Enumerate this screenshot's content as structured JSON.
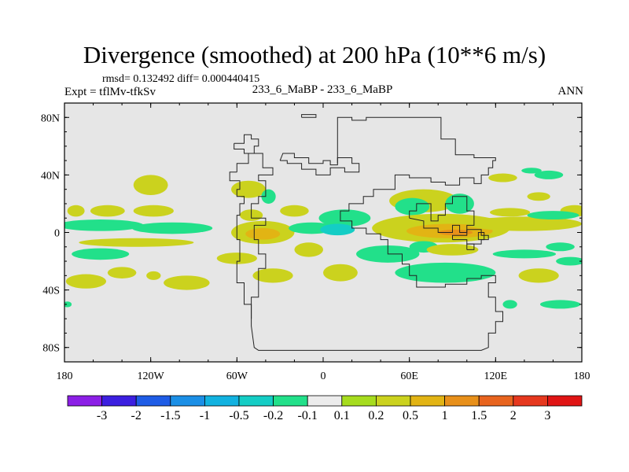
{
  "header": {
    "title": "Divergence (smoothed) at 200 hPa (10**6 m/s)",
    "stats": "rmsd= 0.132492 diff= 0.000440415",
    "experiment": "Expt = tflMv-tfkSv",
    "cases": "233_6_MaBP - 233_6_MaBP",
    "season": "ANN"
  },
  "chart_data": {
    "type": "heatmap",
    "title": "Divergence (smoothed) at 200 hPa (10**6 m/s)",
    "xlabel": "",
    "ylabel": "",
    "xlim": [
      -180,
      180
    ],
    "ylim": [
      -90,
      90
    ],
    "x_ticks": [
      {
        "value": -180,
        "label": "180"
      },
      {
        "value": -120,
        "label": "120W"
      },
      {
        "value": -60,
        "label": "60W"
      },
      {
        "value": 0,
        "label": "0"
      },
      {
        "value": 60,
        "label": "60E"
      },
      {
        "value": 120,
        "label": "120E"
      },
      {
        "value": 180,
        "label": "180"
      }
    ],
    "y_ticks": [
      {
        "value": 80,
        "label": "80N"
      },
      {
        "value": 40,
        "label": "40N"
      },
      {
        "value": 0,
        "label": "0"
      },
      {
        "value": -40,
        "label": "40S"
      },
      {
        "value": -80,
        "label": "80S"
      }
    ],
    "colorbar": {
      "labels": [
        "-3",
        "-2",
        "-1.5",
        "-1",
        "-0.5",
        "-0.2",
        "-0.1",
        "0.1",
        "0.2",
        "0.5",
        "1",
        "1.5",
        "2",
        "3"
      ],
      "colors": [
        "#8c1fe6",
        "#3c1fe0",
        "#1e5ce6",
        "#1b8fe6",
        "#12b2e0",
        "#14cdc5",
        "#22e08a",
        "#ececec",
        "#a6dc1e",
        "#cbd21e",
        "#e2b414",
        "#e8901a",
        "#e8641e",
        "#e6381e",
        "#e01414"
      ]
    },
    "background_value_color": "#e6e6e6",
    "regions": [
      {
        "lon": 175,
        "lat": 15,
        "rx": 10,
        "ry": 4,
        "value": 0.2
      },
      {
        "lon": -172,
        "lat": 15,
        "rx": 6,
        "ry": 4,
        "value": 0.2
      },
      {
        "lon": -150,
        "lat": 15,
        "rx": 12,
        "ry": 4,
        "value": 0.2
      },
      {
        "lon": -118,
        "lat": 15,
        "rx": 14,
        "ry": 4,
        "value": 0.2
      },
      {
        "lon": -120,
        "lat": 33,
        "rx": 12,
        "ry": 7,
        "value": 0.2
      },
      {
        "lon": -155,
        "lat": 5,
        "rx": 30,
        "ry": 4,
        "value": -0.2
      },
      {
        "lon": -105,
        "lat": 3,
        "rx": 28,
        "ry": 4,
        "value": -0.2
      },
      {
        "lon": -130,
        "lat": -7,
        "rx": 40,
        "ry": 3,
        "value": 0.2
      },
      {
        "lon": -155,
        "lat": -15,
        "rx": 20,
        "ry": 4,
        "value": -0.2
      },
      {
        "lon": -140,
        "lat": -28,
        "rx": 10,
        "ry": 4,
        "value": 0.2
      },
      {
        "lon": -165,
        "lat": -34,
        "rx": 14,
        "ry": 5,
        "value": 0.2
      },
      {
        "lon": -95,
        "lat": -35,
        "rx": 16,
        "ry": 5,
        "value": 0.2
      },
      {
        "lon": -118,
        "lat": -30,
        "rx": 5,
        "ry": 3,
        "value": 0.2
      },
      {
        "lon": -52,
        "lat": 30,
        "rx": 12,
        "ry": 6,
        "value": 0.2
      },
      {
        "lon": -50,
        "lat": 12,
        "rx": 8,
        "ry": 4,
        "value": 0.2
      },
      {
        "lon": -38,
        "lat": 25,
        "rx": 5,
        "ry": 5,
        "value": -0.2
      },
      {
        "lon": -20,
        "lat": 15,
        "rx": 10,
        "ry": 4,
        "value": 0.2
      },
      {
        "lon": -42,
        "lat": 0,
        "rx": 22,
        "ry": 8,
        "value": 0.2
      },
      {
        "lon": -42,
        "lat": -1,
        "rx": 12,
        "ry": 4,
        "value": 0.5
      },
      {
        "lon": -8,
        "lat": 3,
        "rx": 16,
        "ry": 4,
        "value": -0.2
      },
      {
        "lon": -60,
        "lat": -18,
        "rx": 14,
        "ry": 4,
        "value": 0.2
      },
      {
        "lon": -10,
        "lat": -12,
        "rx": 10,
        "ry": 5,
        "value": 0.2
      },
      {
        "lon": -35,
        "lat": -30,
        "rx": 14,
        "ry": 5,
        "value": 0.2
      },
      {
        "lon": 15,
        "lat": 10,
        "rx": 18,
        "ry": 6,
        "value": -0.2
      },
      {
        "lon": 10,
        "lat": 2,
        "rx": 12,
        "ry": 4,
        "value": -0.5
      },
      {
        "lon": 70,
        "lat": 22,
        "rx": 24,
        "ry": 8,
        "value": 0.2
      },
      {
        "lon": 62,
        "lat": 18,
        "rx": 12,
        "ry": 6,
        "value": -0.2
      },
      {
        "lon": 95,
        "lat": 20,
        "rx": 10,
        "ry": 7,
        "value": -0.2
      },
      {
        "lon": 82,
        "lat": 3,
        "rx": 48,
        "ry": 10,
        "value": 0.2
      },
      {
        "lon": 88,
        "lat": 1,
        "rx": 30,
        "ry": 5,
        "value": 0.5
      },
      {
        "lon": 92,
        "lat": 0,
        "rx": 12,
        "ry": 2,
        "value": 1
      },
      {
        "lon": 140,
        "lat": 6,
        "rx": 40,
        "ry": 5,
        "value": 0.2
      },
      {
        "lon": 160,
        "lat": 12,
        "rx": 18,
        "ry": 3,
        "value": -0.2
      },
      {
        "lon": 130,
        "lat": 14,
        "rx": 14,
        "ry": 3,
        "value": 0.2
      },
      {
        "lon": 125,
        "lat": 38,
        "rx": 10,
        "ry": 3,
        "value": 0.2
      },
      {
        "lon": 157,
        "lat": 40,
        "rx": 10,
        "ry": 3,
        "value": -0.2
      },
      {
        "lon": 145,
        "lat": 43,
        "rx": 7,
        "ry": 2,
        "value": -0.2
      },
      {
        "lon": 150,
        "lat": 25,
        "rx": 8,
        "ry": 3,
        "value": 0.2
      },
      {
        "lon": 45,
        "lat": -15,
        "rx": 22,
        "ry": 6,
        "value": -0.2
      },
      {
        "lon": 70,
        "lat": -10,
        "rx": 10,
        "ry": 4,
        "value": -0.2
      },
      {
        "lon": 90,
        "lat": -12,
        "rx": 18,
        "ry": 4,
        "value": 0.2
      },
      {
        "lon": 140,
        "lat": -15,
        "rx": 22,
        "ry": 3,
        "value": -0.2
      },
      {
        "lon": 165,
        "lat": -10,
        "rx": 10,
        "ry": 3,
        "value": -0.2
      },
      {
        "lon": 12,
        "lat": -28,
        "rx": 12,
        "ry": 6,
        "value": 0.2
      },
      {
        "lon": 85,
        "lat": -28,
        "rx": 35,
        "ry": 7,
        "value": -0.2
      },
      {
        "lon": 150,
        "lat": -30,
        "rx": 14,
        "ry": 5,
        "value": 0.2
      },
      {
        "lon": 172,
        "lat": -20,
        "rx": 10,
        "ry": 3,
        "value": -0.2
      },
      {
        "lon": 165,
        "lat": -50,
        "rx": 14,
        "ry": 3,
        "value": -0.2
      },
      {
        "lon": 130,
        "lat": -50,
        "rx": 5,
        "ry": 3,
        "value": -0.2
      },
      {
        "lon": -178,
        "lat": -50,
        "rx": 3,
        "ry": 2,
        "value": -0.2
      }
    ],
    "land_outlines": [
      [
        [
          -30,
          50
        ],
        [
          -28,
          55
        ],
        [
          -20,
          55
        ],
        [
          -20,
          52
        ],
        [
          -10,
          52
        ],
        [
          -10,
          48
        ],
        [
          0,
          48
        ],
        [
          0,
          50
        ],
        [
          5,
          50
        ],
        [
          5,
          47
        ],
        [
          10,
          47
        ],
        [
          10,
          52
        ],
        [
          20,
          52
        ],
        [
          20,
          48
        ],
        [
          25,
          48
        ],
        [
          25,
          42
        ],
        [
          15,
          42
        ],
        [
          15,
          45
        ],
        [
          5,
          45
        ],
        [
          5,
          40
        ],
        [
          -5,
          40
        ],
        [
          -5,
          44
        ],
        [
          -15,
          44
        ],
        [
          -15,
          48
        ],
        [
          -25,
          48
        ],
        [
          -25,
          50
        ],
        [
          -30,
          50
        ]
      ],
      [
        [
          -60,
          42
        ],
        [
          -60,
          48
        ],
        [
          -52,
          48
        ],
        [
          -52,
          55
        ],
        [
          -42,
          55
        ],
        [
          -42,
          45
        ],
        [
          -35,
          45
        ],
        [
          -35,
          40
        ],
        [
          -45,
          40
        ],
        [
          -45,
          36
        ],
        [
          -40,
          36
        ],
        [
          -40,
          25
        ],
        [
          -45,
          25
        ],
        [
          -45,
          20
        ],
        [
          -50,
          20
        ],
        [
          -50,
          10
        ],
        [
          -40,
          10
        ],
        [
          -40,
          5
        ],
        [
          -48,
          5
        ],
        [
          -48,
          -5
        ],
        [
          -45,
          -5
        ],
        [
          -45,
          -15
        ],
        [
          -40,
          -15
        ],
        [
          -40,
          -25
        ],
        [
          -45,
          -25
        ],
        [
          -45,
          -45
        ],
        [
          -50,
          -45
        ],
        [
          -50,
          -60
        ],
        [
          -50,
          -65
        ],
        [
          -48,
          -80
        ],
        [
          -45,
          -82
        ],
        [
          10,
          -82
        ],
        [
          60,
          -82
        ],
        [
          110,
          -82
        ],
        [
          115,
          -80
        ],
        [
          115,
          -70
        ],
        [
          120,
          -70
        ],
        [
          120,
          -62
        ],
        [
          125,
          -62
        ],
        [
          125,
          -55
        ],
        [
          120,
          -55
        ],
        [
          120,
          -45
        ],
        [
          115,
          -45
        ],
        [
          115,
          -35
        ],
        [
          120,
          -35
        ],
        [
          120,
          -30
        ],
        [
          110,
          -30
        ],
        [
          110,
          -32
        ],
        [
          100,
          -32
        ],
        [
          100,
          -36
        ],
        [
          85,
          -36
        ],
        [
          85,
          -38
        ],
        [
          65,
          -38
        ],
        [
          65,
          -30
        ],
        [
          60,
          -30
        ],
        [
          60,
          -22
        ],
        [
          55,
          -22
        ],
        [
          55,
          -15
        ],
        [
          45,
          -15
        ],
        [
          45,
          -5
        ],
        [
          40,
          -5
        ],
        [
          40,
          -1
        ],
        [
          30,
          -1
        ],
        [
          30,
          3
        ],
        [
          20,
          3
        ],
        [
          20,
          8
        ],
        [
          12,
          8
        ],
        [
          12,
          15
        ],
        [
          18,
          15
        ],
        [
          18,
          20
        ],
        [
          28,
          20
        ],
        [
          28,
          25
        ],
        [
          35,
          25
        ],
        [
          35,
          30
        ],
        [
          50,
          30
        ],
        [
          50,
          40
        ],
        [
          60,
          40
        ],
        [
          60,
          38
        ],
        [
          75,
          38
        ],
        [
          75,
          35
        ],
        [
          85,
          35
        ],
        [
          85,
          33
        ],
        [
          95,
          33
        ],
        [
          95,
          38
        ],
        [
          105,
          38
        ],
        [
          105,
          34
        ],
        [
          110,
          34
        ],
        [
          110,
          40
        ],
        [
          115,
          40
        ],
        [
          115,
          45
        ],
        [
          118,
          45
        ],
        [
          118,
          50
        ],
        [
          120,
          50
        ],
        [
          120,
          52
        ],
        [
          105,
          52
        ],
        [
          105,
          54
        ],
        [
          92,
          54
        ],
        [
          92,
          65
        ],
        [
          82,
          65
        ],
        [
          82,
          80
        ],
        [
          30,
          80
        ],
        [
          30,
          78
        ],
        [
          20,
          78
        ],
        [
          20,
          80
        ],
        [
          10,
          80
        ],
        [
          10,
          75
        ],
        [
          10,
          48
        ]
      ],
      [
        [
          -60,
          42
        ],
        [
          -65,
          42
        ],
        [
          -65,
          36
        ],
        [
          -58,
          36
        ],
        [
          -58,
          30
        ],
        [
          -60,
          30
        ],
        [
          -60,
          25
        ],
        [
          -55,
          25
        ],
        [
          -55,
          20
        ],
        [
          -58,
          20
        ],
        [
          -58,
          12
        ],
        [
          -60,
          12
        ],
        [
          -60,
          -5
        ],
        [
          -58,
          -5
        ],
        [
          -58,
          -20
        ],
        [
          -60,
          -20
        ],
        [
          -60,
          -35
        ],
        [
          -55,
          -35
        ],
        [
          -55,
          -50
        ],
        [
          -50,
          -50
        ],
        [
          -50,
          -60
        ]
      ],
      [
        [
          -62,
          62
        ],
        [
          -55,
          62
        ],
        [
          -55,
          68
        ],
        [
          -50,
          68
        ],
        [
          -50,
          65
        ],
        [
          -45,
          65
        ],
        [
          -45,
          60
        ],
        [
          -48,
          60
        ],
        [
          -48,
          55
        ],
        [
          -55,
          55
        ],
        [
          -55,
          58
        ],
        [
          -62,
          58
        ],
        [
          -62,
          62
        ]
      ],
      [
        [
          -15,
          80
        ],
        [
          -15,
          82
        ],
        [
          -5,
          82
        ],
        [
          -5,
          80
        ],
        [
          -15,
          80
        ]
      ],
      [
        [
          60,
          10
        ],
        [
          60,
          15
        ],
        [
          65,
          15
        ],
        [
          65,
          20
        ],
        [
          75,
          20
        ],
        [
          75,
          8
        ],
        [
          80,
          8
        ],
        [
          80,
          12
        ],
        [
          85,
          12
        ],
        [
          85,
          20
        ],
        [
          90,
          20
        ],
        [
          90,
          25
        ],
        [
          100,
          25
        ],
        [
          100,
          15
        ],
        [
          105,
          15
        ],
        [
          105,
          5
        ],
        [
          100,
          5
        ],
        [
          100,
          0
        ],
        [
          95,
          0
        ],
        [
          95,
          5
        ],
        [
          90,
          5
        ],
        [
          90,
          0
        ],
        [
          80,
          0
        ],
        [
          80,
          3
        ],
        [
          70,
          3
        ],
        [
          70,
          8
        ],
        [
          60,
          10
        ]
      ],
      [
        [
          90,
          -5
        ],
        [
          100,
          -5
        ],
        [
          100,
          -8
        ],
        [
          110,
          -8
        ],
        [
          110,
          -5
        ],
        [
          115,
          -5
        ],
        [
          115,
          -2
        ],
        [
          110,
          -2
        ],
        [
          110,
          2
        ],
        [
          100,
          2
        ],
        [
          100,
          -2
        ],
        [
          90,
          -2
        ],
        [
          90,
          -5
        ]
      ],
      [
        [
          100,
          -12
        ],
        [
          105,
          -12
        ],
        [
          105,
          -8
        ],
        [
          100,
          -8
        ],
        [
          100,
          -12
        ]
      ],
      [
        [
          108,
          -5
        ],
        [
          112,
          -5
        ],
        [
          112,
          0
        ],
        [
          108,
          0
        ],
        [
          108,
          -5
        ]
      ]
    ]
  }
}
